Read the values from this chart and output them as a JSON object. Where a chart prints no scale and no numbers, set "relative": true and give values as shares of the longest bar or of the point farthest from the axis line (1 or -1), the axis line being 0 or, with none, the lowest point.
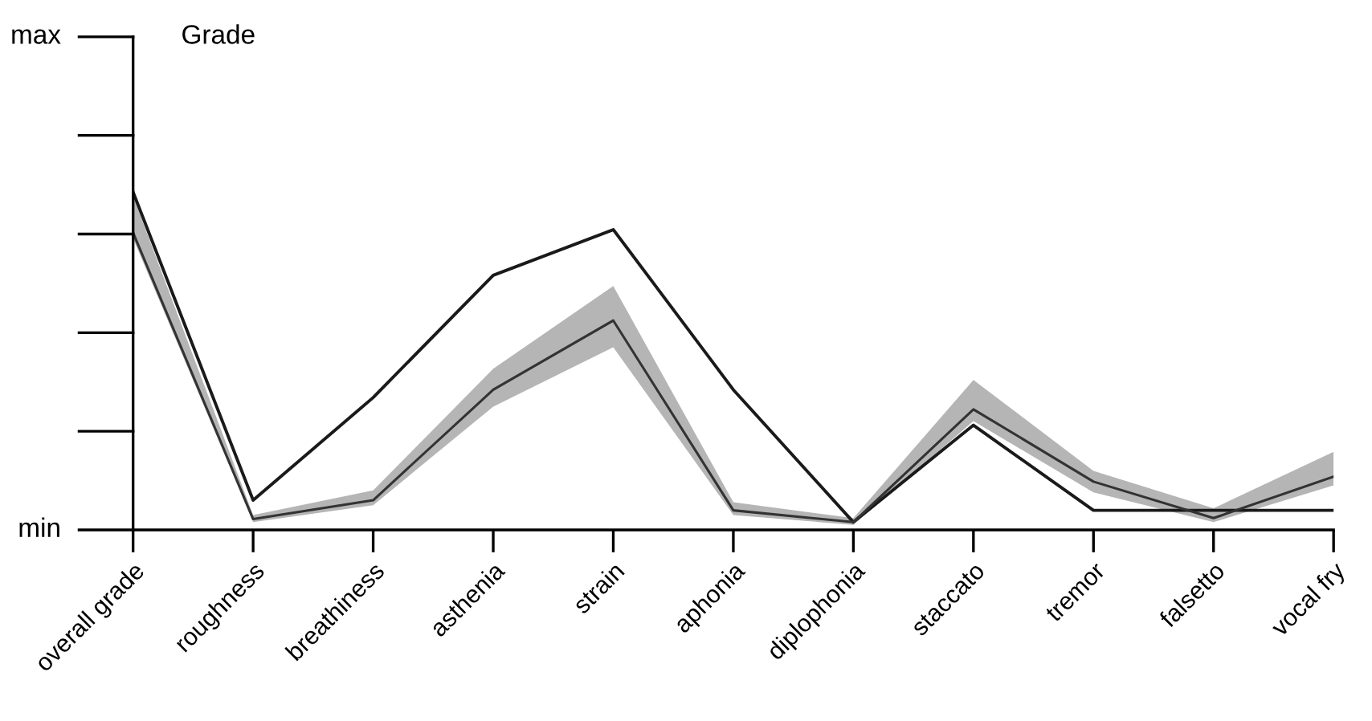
{
  "chart_data": {
    "type": "line",
    "relative": true,
    "categories": [
      "overall grade",
      "roughness",
      "breathiness",
      "asthenia",
      "strain",
      "aphonia",
      "diplophonia",
      "staccato",
      "tremor",
      "falsetto",
      "vocal fry"
    ],
    "annotations": [
      "min",
      "max",
      "Grade"
    ],
    "grid": false,
    "marker": "none",
    "line_style": "solid",
    "series": [
      {
        "color": "#1a1a1a",
        "values": [
          1,
          0.088,
          0.392,
          0.754,
          0.889,
          0.415,
          0.023,
          0.31,
          0.058,
          0.058,
          0.058
        ]
      },
      {
        "color": "#333333",
        "values": [
          0.88,
          0.032,
          0.088,
          0.415,
          0.62,
          0.058,
          0.023,
          0.357,
          0.143,
          0.035,
          0.158
        ],
        "lower": [
          0.863,
          0.023,
          0.073,
          0.365,
          0.541,
          0.044,
          0.015,
          0.322,
          0.111,
          0.023,
          0.132
        ],
        "upper": [
          0.988,
          0.044,
          0.117,
          0.477,
          0.722,
          0.082,
          0.035,
          0.444,
          0.175,
          0.064,
          0.231
        ]
      }
    ]
  }
}
